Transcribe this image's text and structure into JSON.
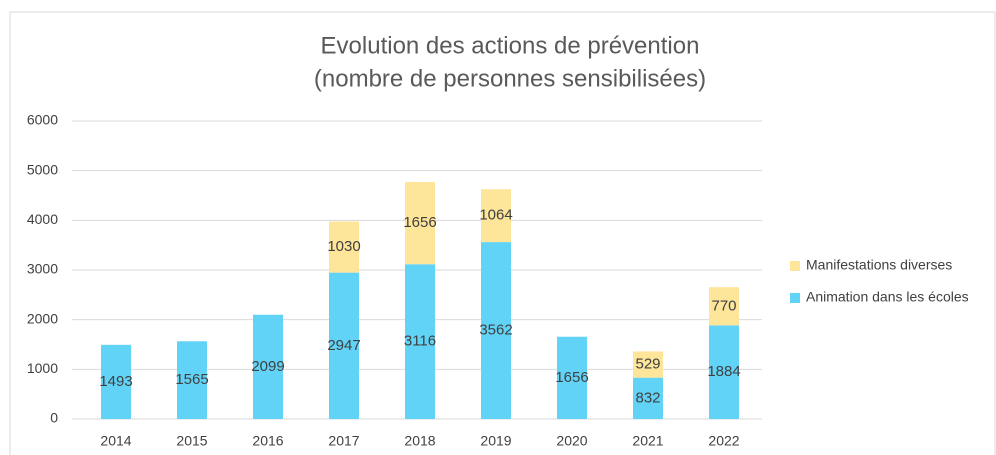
{
  "chart_data": {
    "type": "stacked_bar",
    "title": "Evolution des actions de prévention",
    "subtitle": "(nombre de personnes sensibilisées)",
    "categories": [
      "2014",
      "2015",
      "2016",
      "2017",
      "2018",
      "2019",
      "2020",
      "2021",
      "2022"
    ],
    "series": [
      {
        "name": "Animation dans les écoles",
        "color": "#61d3f7",
        "values": [
          1493,
          1565,
          2099,
          2947,
          3116,
          3562,
          1656,
          832,
          1884
        ]
      },
      {
        "name": "Manifestations diverses",
        "color": "#fde59a",
        "values": [
          null,
          null,
          null,
          1030,
          1656,
          1064,
          null,
          529,
          770
        ]
      }
    ],
    "ylim": [
      0,
      6000
    ],
    "yticks": [
      0,
      1000,
      2000,
      3000,
      4000,
      5000,
      6000
    ],
    "grid": true,
    "legend": "right"
  }
}
